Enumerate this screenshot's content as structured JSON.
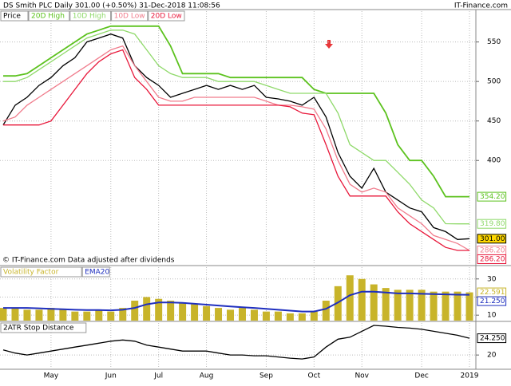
{
  "header": {
    "title": "DS Smith PLC  Daily  301.00 (+0.50%)  31-Dec-2018 11:08:56",
    "site": "IT-Finance.com"
  },
  "chart_data": [
    {
      "type": "line",
      "note": "© IT-Finance.com Data adjusted after dividends",
      "ylim": [
        268,
        589
      ],
      "yticks": [
        400,
        450,
        500,
        550
      ],
      "series": [
        {
          "name": "Price",
          "color": "#000000",
          "label": "301.00",
          "values": [
            445,
            470,
            480,
            495,
            505,
            520,
            530,
            550,
            555,
            560,
            555,
            520,
            505,
            495,
            480,
            485,
            490,
            495,
            490,
            495,
            490,
            495,
            480,
            478,
            475,
            470,
            480,
            455,
            410,
            380,
            365,
            390,
            360,
            350,
            340,
            335,
            315,
            310,
            300,
            301
          ]
        },
        {
          "name": "20D High",
          "color": "#5cc21e",
          "label": "354.20",
          "values": [
            507,
            507,
            510,
            520,
            530,
            540,
            550,
            560,
            565,
            570,
            570,
            570,
            570,
            570,
            545,
            510,
            510,
            510,
            510,
            505,
            505,
            505,
            505,
            505,
            505,
            505,
            490,
            485,
            485,
            485,
            485,
            485,
            460,
            420,
            400,
            400,
            380,
            354.2,
            354.2,
            354.2
          ]
        },
        {
          "name": "10D High",
          "color": "#8fd96a",
          "label": "319.80",
          "values": [
            500,
            500,
            505,
            515,
            525,
            535,
            545,
            555,
            560,
            565,
            565,
            560,
            540,
            520,
            510,
            505,
            505,
            505,
            500,
            500,
            500,
            500,
            495,
            490,
            485,
            485,
            485,
            485,
            460,
            420,
            410,
            400,
            400,
            385,
            370,
            350,
            340,
            320,
            319.8,
            319.8
          ]
        },
        {
          "name": "10D Low",
          "color": "#f07c8c",
          "label": "286.20",
          "values": [
            450,
            455,
            470,
            480,
            490,
            500,
            510,
            520,
            530,
            540,
            545,
            520,
            500,
            480,
            475,
            475,
            480,
            480,
            480,
            480,
            480,
            480,
            475,
            470,
            470,
            468,
            465,
            440,
            400,
            370,
            360,
            365,
            360,
            340,
            330,
            320,
            305,
            300,
            295,
            286.2
          ]
        },
        {
          "name": "20D Low",
          "color": "#e8173a",
          "label": "286.20",
          "values": [
            445,
            445,
            445,
            445,
            450,
            470,
            490,
            510,
            525,
            535,
            540,
            505,
            490,
            470,
            470,
            470,
            470,
            470,
            470,
            470,
            470,
            470,
            470,
            470,
            468,
            460,
            458,
            420,
            380,
            355,
            355,
            355,
            355,
            335,
            320,
            310,
            300,
            290,
            286.2,
            286.2
          ]
        }
      ]
    },
    {
      "type": "bar",
      "ylim": [
        7,
        36.5
      ],
      "yticks": [
        10,
        20,
        30
      ],
      "series": [
        {
          "name": "Volatility Factor",
          "type": "bar",
          "color": "#c8b42a",
          "label": "22.591",
          "values": [
            14,
            14,
            13,
            13,
            14,
            13,
            12,
            12,
            13,
            12,
            14,
            18,
            20,
            19,
            18,
            17,
            16,
            15,
            14,
            13,
            14,
            13,
            12,
            12,
            11,
            11,
            12,
            18,
            26,
            32,
            30,
            27,
            25,
            24,
            24,
            24,
            23,
            23,
            23,
            22.591
          ]
        },
        {
          "name": "EMA20",
          "type": "line",
          "color": "#1f2fbf",
          "label": "21.250",
          "values": [
            14,
            14,
            14,
            13.8,
            13.5,
            13.3,
            13,
            12.8,
            12.8,
            12.7,
            13,
            14,
            16,
            17,
            17,
            16.8,
            16.3,
            15.8,
            15.3,
            14.8,
            14.4,
            14,
            13.5,
            13,
            12.5,
            12,
            12,
            13.5,
            17,
            21,
            23,
            23,
            22.5,
            22,
            22,
            21.8,
            21.6,
            21.5,
            21.3,
            21.25
          ]
        }
      ]
    },
    {
      "type": "line",
      "ylim": [
        16.6,
        28.1
      ],
      "yticks": [
        20
      ],
      "categories": [
        null,
        null,
        null,
        null,
        "May",
        null,
        null,
        null,
        null,
        "Jun",
        null,
        null,
        null,
        "Jul",
        null,
        null,
        null,
        "Aug",
        null,
        null,
        null,
        null,
        "Sep",
        null,
        null,
        null,
        "Oct",
        null,
        null,
        null,
        "Nov",
        null,
        null,
        null,
        null,
        "Dec",
        null,
        null,
        null,
        "2019"
      ],
      "series": [
        {
          "name": "2ATR Stop Distance",
          "color": "#000000",
          "label": "24.250",
          "values": [
            21.3,
            20.5,
            20,
            20.5,
            21,
            21.5,
            22,
            22.5,
            23,
            23.5,
            23.8,
            23.5,
            22.5,
            22,
            21.5,
            21,
            21,
            21,
            20.5,
            20,
            20,
            19.8,
            19.8,
            19.5,
            19.2,
            19,
            19.5,
            22,
            24,
            24.5,
            26,
            27.5,
            27.3,
            27,
            26.8,
            26.5,
            26,
            25.5,
            25,
            24.25
          ]
        }
      ]
    }
  ]
}
